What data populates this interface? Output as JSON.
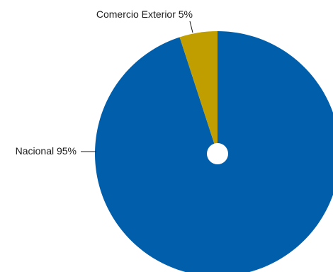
{
  "chart_data": {
    "type": "pie",
    "title": "",
    "slices": [
      {
        "label": "Nacional",
        "value": 95,
        "display": "Nacional 95%",
        "color": "#005eaa"
      },
      {
        "label": "Comercio Exterior",
        "value": 5,
        "display": "Comercio Exterior 5%",
        "color": "#c09e00"
      }
    ],
    "start_angle": "top",
    "direction": "clockwise",
    "center_hole": true,
    "center_hole_color": "#ffffff",
    "legend": "none"
  }
}
